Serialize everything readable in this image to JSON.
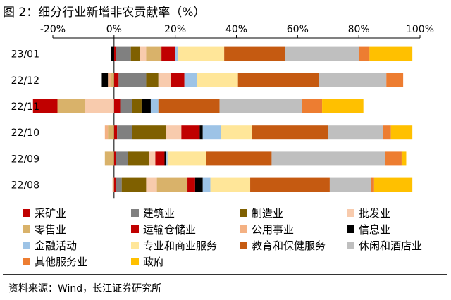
{
  "title": "图 2：细分行业新增非农贡献率（%）",
  "source": "资料来源：Wind，长江证券研究所",
  "chart_data": {
    "type": "bar",
    "orientation": "horizontal",
    "stacked": true,
    "xlim": [
      -20,
      100
    ],
    "x_ticks": [
      -20,
      0,
      20,
      40,
      60,
      80,
      100
    ],
    "x_tick_labels": [
      "-20%",
      "0%",
      "20%",
      "40%",
      "60%",
      "80%",
      "100%"
    ],
    "x_axis_position": "top",
    "grid": false,
    "legend_position": "bottom",
    "categories": [
      "23/01",
      "22/12",
      "22/11",
      "22/10",
      "22/09",
      "22/08"
    ],
    "series": [
      {
        "name": "采矿业",
        "color": "#c00000",
        "values": [
          0.5,
          1.5,
          2,
          1,
          0.5,
          0.5
        ]
      },
      {
        "name": "建筑业",
        "color": "#808080",
        "values": [
          5,
          9,
          4,
          5,
          4,
          2
        ]
      },
      {
        "name": "制造业",
        "color": "#7f6000",
        "values": [
          3,
          4,
          3,
          11,
          7,
          8
        ]
      },
      {
        "name": "批发业",
        "color": "#f8cbad",
        "values": [
          2,
          4,
          -9.5,
          5,
          2,
          3.5
        ]
      },
      {
        "name": "零售业",
        "color": "#d9b26a",
        "values": [
          5,
          -1,
          -9,
          -2,
          -3,
          10
        ]
      },
      {
        "name": "运输仓储业",
        "color": "#c00000",
        "values": [
          4.5,
          4.5,
          -8,
          6,
          3,
          2.5
        ]
      },
      {
        "name": "公用事业",
        "color": "#f4b183",
        "values": [
          0,
          -1,
          0,
          -1,
          0,
          -0.5
        ]
      },
      {
        "name": "信息业",
        "color": "#000000",
        "values": [
          -1,
          -2,
          3,
          1,
          0.5,
          2.5
        ]
      },
      {
        "name": "金融活动",
        "color": "#9dc3e6",
        "values": [
          1,
          4,
          2.5,
          6,
          0.5,
          2.5
        ]
      },
      {
        "name": "专业和商业服务",
        "color": "#ffe699",
        "values": [
          15,
          13.5,
          0,
          10,
          12.5,
          13
        ]
      },
      {
        "name": "教育和保健服务",
        "color": "#c55a11",
        "values": [
          20,
          26.5,
          20,
          25,
          21.5,
          26
        ]
      },
      {
        "name": "休闲和酒店业",
        "color": "#bfbfbf",
        "values": [
          24,
          22,
          27,
          18,
          37,
          13.5
        ]
      },
      {
        "name": "其他服务业",
        "color": "#ed7d31",
        "values": [
          3.5,
          5.5,
          6.5,
          2.5,
          5.5,
          1
        ]
      },
      {
        "name": "政府",
        "color": "#ffc000",
        "values": [
          14,
          0,
          13.5,
          7,
          1.5,
          12.5
        ]
      }
    ]
  }
}
